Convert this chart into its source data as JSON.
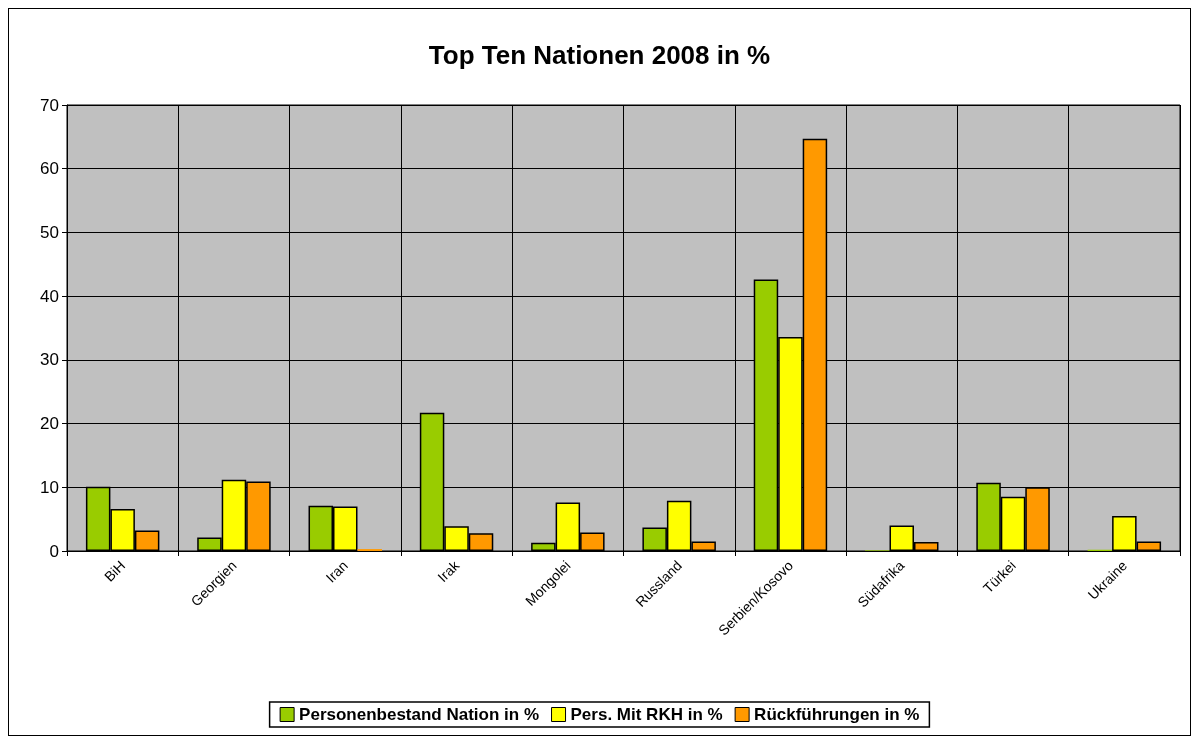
{
  "chart_data": {
    "type": "bar",
    "title": "Top Ten Nationen 2008 in %",
    "categories": [
      "BiH",
      "Georgien",
      "Iran",
      "Irak",
      "Mongolei",
      "Russland",
      "Serbien/Kosovo",
      "Südafrika",
      "Türkei",
      "Ukraine"
    ],
    "series": [
      {
        "name": "Personenbestand Nation in %",
        "color": "#99cc00",
        "values": [
          10.1,
          2.1,
          7.1,
          21.7,
          1.3,
          3.7,
          42.6,
          0.1,
          10.7,
          0.2
        ]
      },
      {
        "name": "Pers. Mit RKH in %",
        "color": "#ffff00",
        "values": [
          6.6,
          11.2,
          7.0,
          3.9,
          7.6,
          7.9,
          33.6,
          4.0,
          8.5,
          5.5
        ]
      },
      {
        "name": "Rückführungen in %",
        "color": "#ff9900",
        "values": [
          3.2,
          10.9,
          0.3,
          2.8,
          2.9,
          1.5,
          64.7,
          1.4,
          10.0,
          1.5
        ]
      }
    ],
    "ylim": [
      0,
      70
    ],
    "yticks": [
      0,
      10,
      20,
      30,
      40,
      50,
      60,
      70
    ],
    "grid": true,
    "legend": "bottom"
  }
}
